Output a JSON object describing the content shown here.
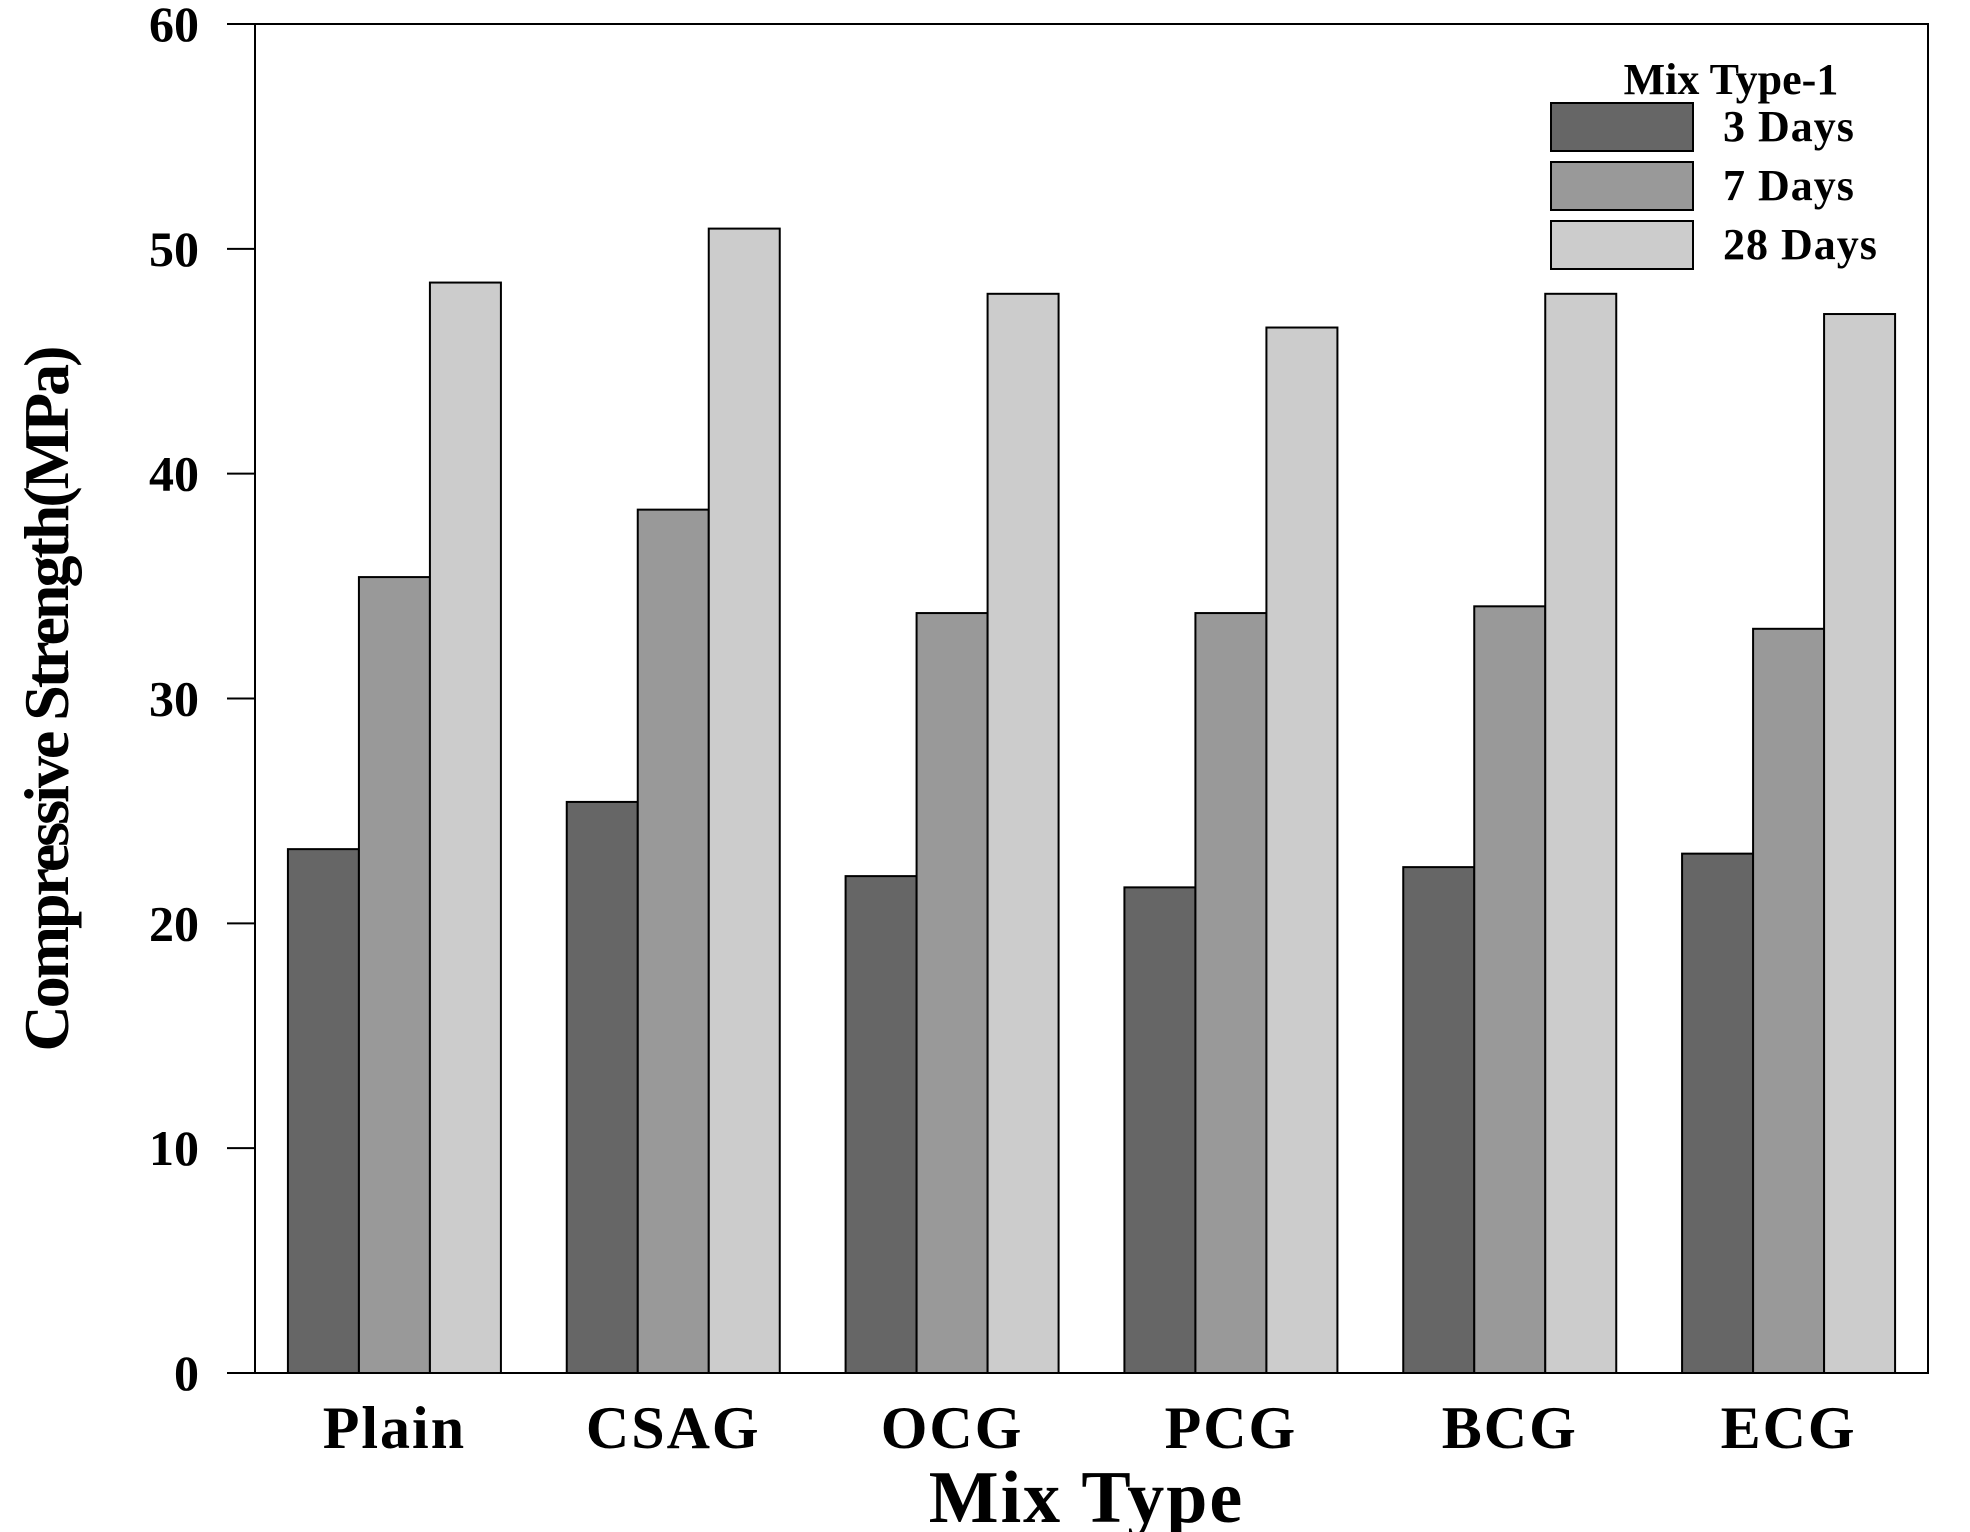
{
  "chart_data": {
    "type": "bar",
    "title": "",
    "xlabel": "Mix Type",
    "ylabel": "Compressive Strength(MPa)",
    "ylim": [
      0,
      60
    ],
    "yticks": [
      "0",
      "10",
      "20",
      "30",
      "40",
      "50",
      "60"
    ],
    "categories": [
      "Plain",
      "CSAG",
      "OCG",
      "PCG",
      "BCG",
      "ECG"
    ],
    "legend": {
      "title": "Mix Type-1",
      "position": "top-right"
    },
    "series": [
      {
        "name": "3 Days",
        "color": "#666666",
        "values": [
          23.3,
          25.4,
          22.1,
          21.6,
          22.5,
          23.1
        ]
      },
      {
        "name": "7 Days",
        "color": "#999999",
        "values": [
          35.4,
          38.4,
          33.8,
          33.8,
          34.1,
          33.1
        ]
      },
      {
        "name": "28 Days",
        "color": "#cccccc",
        "values": [
          48.5,
          50.9,
          48.0,
          46.5,
          48.0,
          47.1
        ]
      }
    ],
    "grid": false
  }
}
